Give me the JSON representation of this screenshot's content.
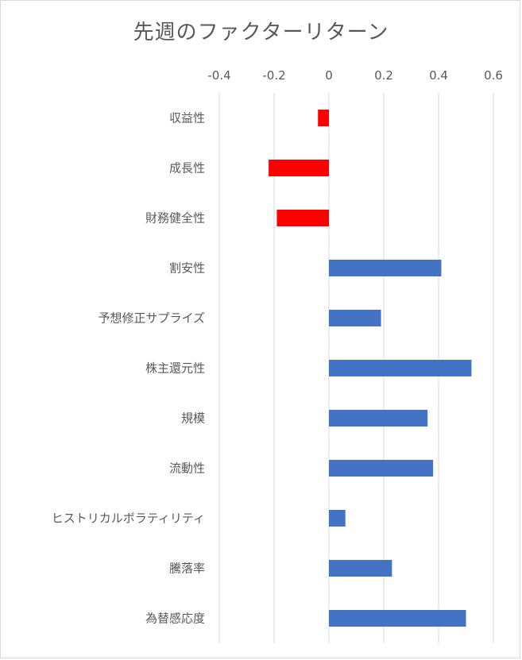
{
  "chart_data": {
    "type": "bar",
    "orientation": "horizontal",
    "title": "先週のファクターリターン",
    "xlim": [
      -0.4,
      0.6
    ],
    "x_ticks": [
      -0.4,
      -0.2,
      0,
      0.2,
      0.4,
      0.6
    ],
    "x_tick_labels": [
      "-0.4",
      "-0.2",
      "0",
      "0.2",
      "0.4",
      "0.6"
    ],
    "x_axis_position": "top",
    "grid": "vertical",
    "legend": "none",
    "categories": [
      "収益性",
      "成長性",
      "財務健全性",
      "割安性",
      "予想修正サプライズ",
      "株主還元性",
      "規模",
      "流動性",
      "ヒストリカルボラティリティ",
      "騰落率",
      "為替感応度"
    ],
    "values": [
      -0.04,
      -0.22,
      -0.19,
      0.41,
      0.19,
      0.52,
      0.36,
      0.38,
      0.06,
      0.23,
      0.5
    ],
    "colors": {
      "negative": "#ff0000",
      "positive": "#4472c4",
      "grid": "#d9d9d9",
      "text": "#595959"
    }
  }
}
